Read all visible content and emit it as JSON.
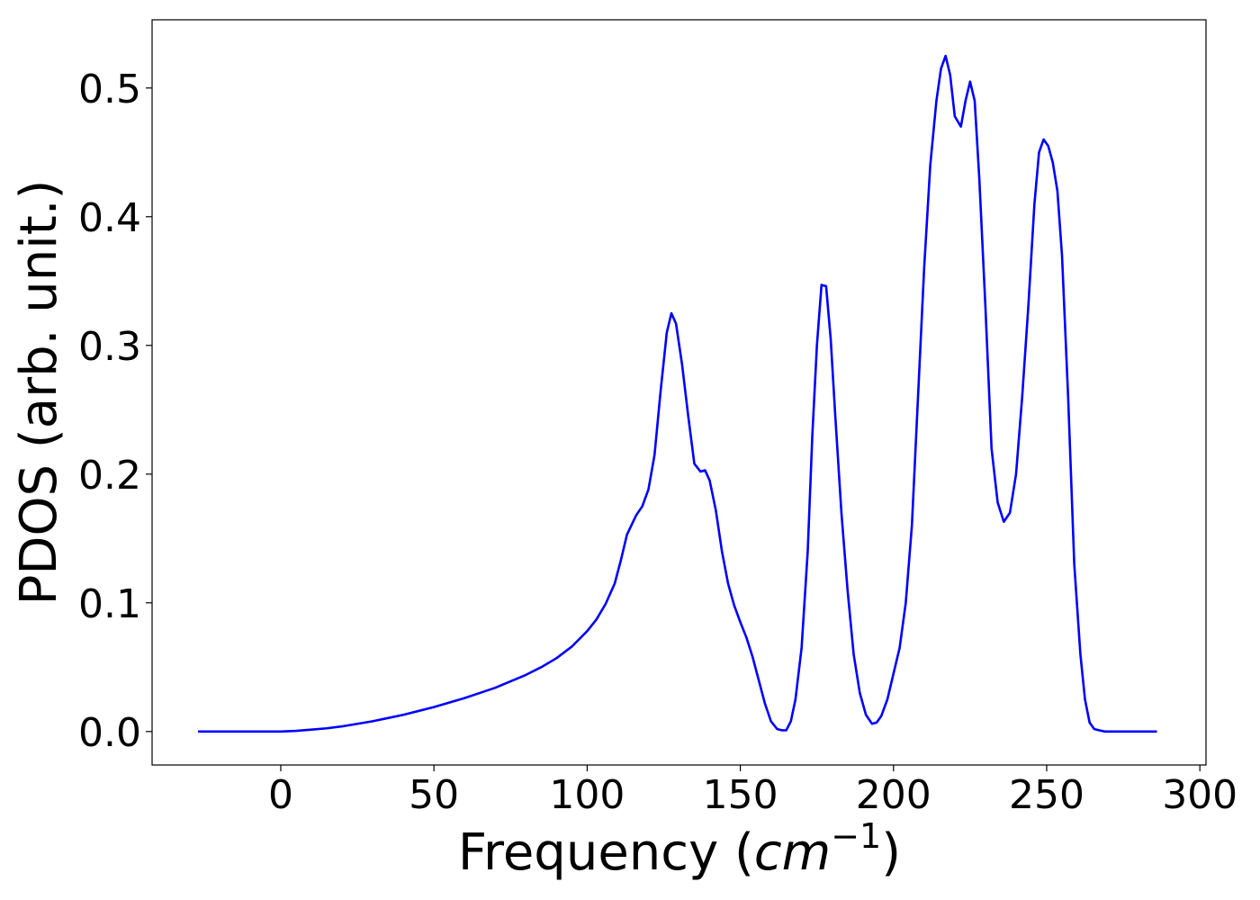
{
  "chart_data": {
    "type": "line",
    "title": "",
    "xlabel": "Frequency (",
    "xlabel_math": "cm",
    "xlabel_sup": "−1",
    "xlabel_close": ")",
    "ylabel": "PDOS (arb. unit.)",
    "xlim": [
      -42,
      302
    ],
    "ylim": [
      -0.026,
      0.553
    ],
    "xticks": [
      0,
      50,
      100,
      150,
      200,
      250,
      300
    ],
    "xtick_labels": [
      "0",
      "50",
      "100",
      "150",
      "200",
      "250",
      "300"
    ],
    "yticks": [
      0.0,
      0.1,
      0.2,
      0.3,
      0.4,
      0.5
    ],
    "ytick_labels": [
      "0.0",
      "0.1",
      "0.2",
      "0.3",
      "0.4",
      "0.5"
    ],
    "grid": false,
    "series": [
      {
        "color": "#0000ff",
        "x": [
          -27,
          -10,
          0,
          5,
          10,
          15,
          20,
          25,
          30,
          35,
          40,
          45,
          50,
          55,
          60,
          65,
          70,
          75,
          80,
          85,
          90,
          95,
          100,
          103,
          106,
          109,
          111,
          113,
          116,
          118,
          120,
          122,
          124,
          126,
          127.5,
          129,
          131,
          133,
          135,
          137,
          138.5,
          140,
          142,
          144,
          146,
          148,
          150,
          152,
          154,
          156,
          158,
          160,
          162,
          163.5,
          165,
          166.5,
          168,
          170,
          172,
          173.5,
          175,
          176.5,
          178,
          179.5,
          181,
          183,
          185,
          187,
          189,
          191,
          193,
          194.5,
          196,
          198,
          200,
          202,
          204,
          206,
          208,
          210,
          212,
          214,
          215.5,
          217,
          218.5,
          220,
          222,
          223.5,
          225,
          226.5,
          228,
          230,
          232,
          234,
          236,
          238,
          240,
          242,
          244,
          246,
          247.5,
          249,
          250.5,
          252,
          253.5,
          255,
          257,
          259,
          261,
          262.5,
          264,
          265.5,
          267,
          269,
          272,
          286
        ],
        "y": [
          0,
          0,
          0,
          0.0005,
          0.0015,
          0.0025,
          0.004,
          0.006,
          0.008,
          0.0105,
          0.013,
          0.016,
          0.019,
          0.0225,
          0.026,
          0.03,
          0.034,
          0.039,
          0.044,
          0.05,
          0.057,
          0.066,
          0.078,
          0.087,
          0.099,
          0.115,
          0.133,
          0.153,
          0.168,
          0.175,
          0.188,
          0.215,
          0.265,
          0.31,
          0.325,
          0.317,
          0.285,
          0.245,
          0.208,
          0.202,
          0.203,
          0.195,
          0.172,
          0.14,
          0.115,
          0.098,
          0.085,
          0.073,
          0.058,
          0.04,
          0.022,
          0.008,
          0.002,
          0.001,
          0.001,
          0.008,
          0.025,
          0.065,
          0.14,
          0.23,
          0.3,
          0.347,
          0.346,
          0.305,
          0.245,
          0.17,
          0.11,
          0.06,
          0.03,
          0.013,
          0.006,
          0.007,
          0.012,
          0.025,
          0.045,
          0.065,
          0.1,
          0.16,
          0.26,
          0.36,
          0.44,
          0.49,
          0.515,
          0.525,
          0.51,
          0.478,
          0.47,
          0.49,
          0.505,
          0.49,
          0.43,
          0.33,
          0.22,
          0.178,
          0.163,
          0.17,
          0.2,
          0.26,
          0.33,
          0.41,
          0.45,
          0.46,
          0.455,
          0.442,
          0.42,
          0.37,
          0.26,
          0.13,
          0.06,
          0.025,
          0.007,
          0.002,
          0.001,
          0,
          0,
          0
        ]
      }
    ]
  }
}
